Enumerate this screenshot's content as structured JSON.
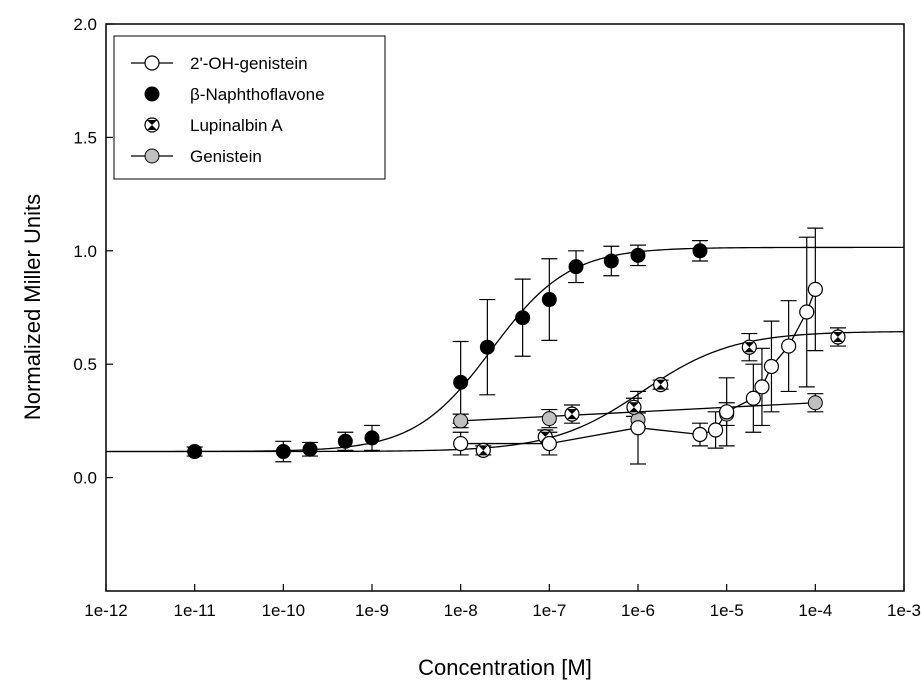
{
  "chart_data": {
    "type": "scatter",
    "xlabel": "Concentration [M]",
    "ylabel": "Normalized Miller Units",
    "x_scale": "log",
    "xlim": [
      1e-12,
      0.001
    ],
    "ylim": [
      -0.5,
      2.0
    ],
    "x_ticks": [
      1e-12,
      1e-11,
      1e-10,
      1e-09,
      1e-08,
      1e-07,
      1e-06,
      1e-05,
      0.0001,
      0.001
    ],
    "x_tick_labels": [
      "1e-12",
      "1e-11",
      "1e-10",
      "1e-9",
      "1e-8",
      "1e-7",
      "1e-6",
      "1e-5",
      "1e-4",
      "1e-3"
    ],
    "y_ticks": [
      0.0,
      0.5,
      1.0,
      1.5,
      2.0
    ],
    "y_tick_labels": [
      "0.0",
      "0.5",
      "1.0",
      "1.5",
      "2.0"
    ],
    "grid": false,
    "legend_position": "top-left",
    "series": [
      {
        "name": "2'-OH-genistein",
        "marker": "open-circle",
        "line": "connected",
        "points": [
          {
            "x": 1e-08,
            "y": 0.15,
            "err": 0.05
          },
          {
            "x": 1e-07,
            "y": 0.15,
            "err": 0.05
          },
          {
            "x": 1e-06,
            "y": 0.22,
            "err": 0.16
          },
          {
            "x": 5e-06,
            "y": 0.19,
            "err": 0.05
          },
          {
            "x": 7.5e-06,
            "y": 0.21,
            "err": 0.08
          },
          {
            "x": 1e-05,
            "y": 0.29,
            "err": 0.15
          },
          {
            "x": 2e-05,
            "y": 0.35,
            "err": 0.15
          },
          {
            "x": 2.5e-05,
            "y": 0.4,
            "err": 0.17
          },
          {
            "x": 3.2e-05,
            "y": 0.49,
            "err": 0.2
          },
          {
            "x": 5e-05,
            "y": 0.58,
            "err": 0.2
          },
          {
            "x": 8e-05,
            "y": 0.73,
            "err": 0.33
          },
          {
            "x": 0.0001,
            "y": 0.83,
            "err": 0.27
          }
        ]
      },
      {
        "name": "β-Naphthoflavone",
        "marker": "filled-circle",
        "line": "sigmoid-fit",
        "fit": {
          "bottom": 0.115,
          "top": 1.015,
          "log_ec50": -7.65,
          "hill": 1.0
        },
        "points": [
          {
            "x": 1e-11,
            "y": 0.115,
            "err": 0.02
          },
          {
            "x": 1e-10,
            "y": 0.115,
            "err": 0.045
          },
          {
            "x": 2e-10,
            "y": 0.125,
            "err": 0.03
          },
          {
            "x": 5e-10,
            "y": 0.16,
            "err": 0.04
          },
          {
            "x": 1e-09,
            "y": 0.175,
            "err": 0.055
          },
          {
            "x": 1e-08,
            "y": 0.42,
            "err": 0.18
          },
          {
            "x": 2e-08,
            "y": 0.575,
            "err": 0.21
          },
          {
            "x": 5e-08,
            "y": 0.705,
            "err": 0.17
          },
          {
            "x": 1e-07,
            "y": 0.785,
            "err": 0.18
          },
          {
            "x": 2e-07,
            "y": 0.93,
            "err": 0.07
          },
          {
            "x": 5e-07,
            "y": 0.955,
            "err": 0.065
          },
          {
            "x": 1e-06,
            "y": 0.98,
            "err": 0.045
          },
          {
            "x": 5e-06,
            "y": 1.0,
            "err": 0.045
          }
        ]
      },
      {
        "name": "Lupinalbin A",
        "marker": "hourglass-circle",
        "line": "sigmoid-fit",
        "fit": {
          "bottom": 0.115,
          "top": 0.645,
          "log_ec50": -5.95,
          "hill": 0.85
        },
        "points": [
          {
            "x": 1.8e-08,
            "y": 0.12,
            "err": 0.02
          },
          {
            "x": 9e-08,
            "y": 0.18,
            "err": 0.03
          },
          {
            "x": 1.8e-07,
            "y": 0.28,
            "err": 0.04
          },
          {
            "x": 9e-07,
            "y": 0.31,
            "err": 0.04
          },
          {
            "x": 1.8e-06,
            "y": 0.41,
            "err": 0.02
          },
          {
            "x": 1.8e-05,
            "y": 0.575,
            "err": 0.06
          },
          {
            "x": 0.00018,
            "y": 0.62,
            "err": 0.04
          }
        ]
      },
      {
        "name": "Genistein",
        "marker": "gray-circle",
        "line": "linear-fit",
        "fit": {
          "y_at_1e-8": 0.25,
          "y_at_1e-4": 0.33
        },
        "points": [
          {
            "x": 1e-08,
            "y": 0.25,
            "err": 0.03
          },
          {
            "x": 1e-07,
            "y": 0.26,
            "err": 0.04
          },
          {
            "x": 1e-06,
            "y": 0.255,
            "err": 0.03
          },
          {
            "x": 1e-05,
            "y": 0.28,
            "err": 0.05
          },
          {
            "x": 0.0001,
            "y": 0.33,
            "err": 0.04
          }
        ]
      }
    ],
    "colors": {
      "axis": "#000000",
      "line": "#000000",
      "filled_marker": "#000000",
      "open_marker": "#ffffff",
      "gray_marker": "#c0c0c0"
    }
  }
}
